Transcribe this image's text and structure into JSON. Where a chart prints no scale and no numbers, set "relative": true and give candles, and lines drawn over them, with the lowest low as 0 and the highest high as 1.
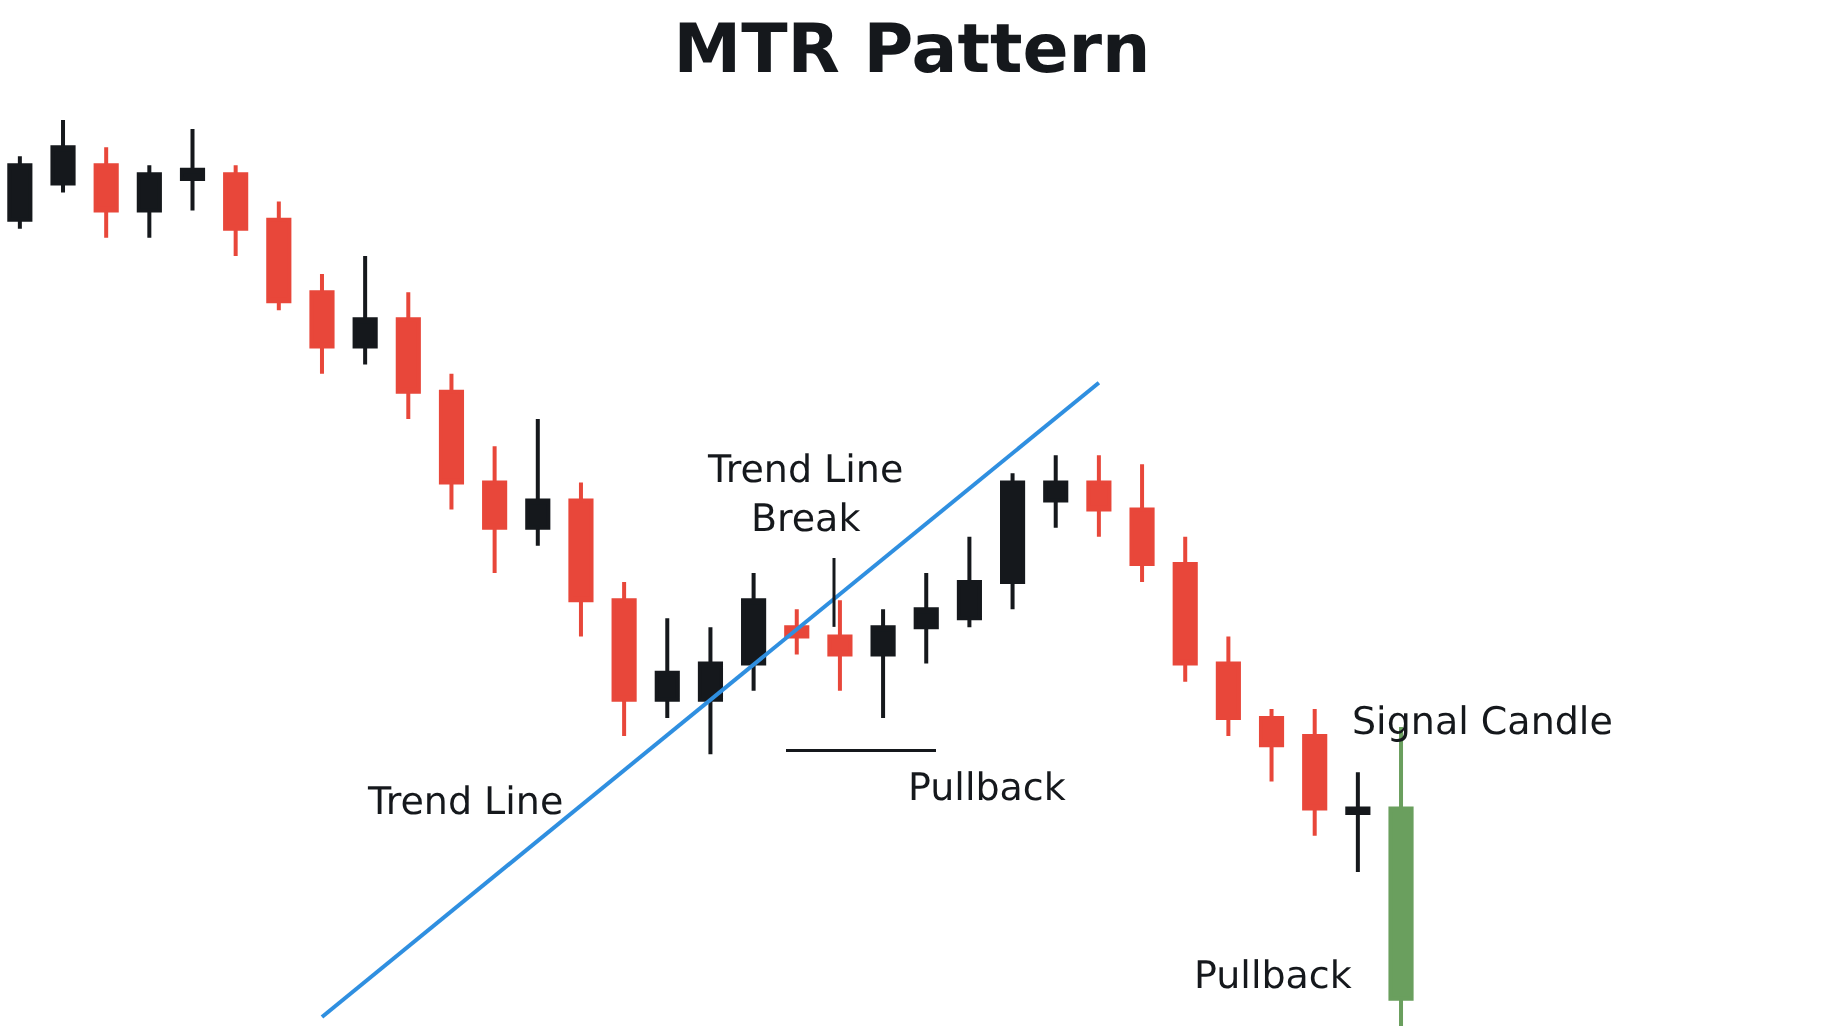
{
  "chart_data": {
    "type": "candlestick",
    "title": "MTR Pattern",
    "relative": true,
    "categories": [
      null,
      null,
      null,
      null,
      null,
      null,
      null,
      null,
      null,
      null,
      null,
      null,
      null,
      null,
      null,
      null,
      null,
      null,
      null,
      null,
      null,
      null,
      null,
      null,
      null,
      null,
      null,
      null,
      null,
      null,
      null,
      null,
      null
    ],
    "ohlc": [
      [
        0.89,
        0.96,
        0.88,
        0.95
      ],
      [
        0.93,
        1.0,
        0.92,
        0.97
      ],
      [
        0.95,
        0.97,
        0.87,
        0.9
      ],
      [
        0.9,
        0.95,
        0.87,
        0.94
      ],
      [
        0.935,
        0.99,
        0.9,
        0.945
      ],
      [
        0.94,
        0.95,
        0.85,
        0.88
      ],
      [
        0.89,
        0.91,
        0.79,
        0.8
      ],
      [
        0.81,
        0.83,
        0.72,
        0.75
      ],
      [
        0.75,
        0.85,
        0.73,
        0.78
      ],
      [
        0.78,
        0.81,
        0.67,
        0.7
      ],
      [
        0.7,
        0.72,
        0.57,
        0.6
      ],
      [
        0.6,
        0.64,
        0.5,
        0.55
      ],
      [
        0.55,
        0.67,
        0.53,
        0.58
      ],
      [
        0.58,
        0.6,
        0.43,
        0.47
      ],
      [
        0.47,
        0.49,
        0.32,
        0.36
      ],
      [
        0.36,
        0.45,
        0.34,
        0.39
      ],
      [
        0.36,
        0.44,
        0.3,
        0.4
      ],
      [
        0.4,
        0.5,
        0.37,
        0.47
      ],
      [
        0.44,
        0.46,
        0.41,
        0.43
      ],
      [
        0.43,
        0.47,
        0.37,
        0.41
      ],
      [
        0.41,
        0.46,
        0.34,
        0.44
      ],
      [
        0.44,
        0.5,
        0.4,
        0.46
      ],
      [
        0.45,
        0.54,
        0.44,
        0.49
      ],
      [
        0.49,
        0.61,
        0.46,
        0.6
      ],
      [
        0.58,
        0.63,
        0.55,
        0.6
      ],
      [
        0.6,
        0.63,
        0.54,
        0.57
      ],
      [
        0.57,
        0.62,
        0.49,
        0.51
      ],
      [
        0.51,
        0.54,
        0.38,
        0.4
      ],
      [
        0.4,
        0.43,
        0.32,
        0.34
      ],
      [
        0.34,
        0.35,
        0.27,
        0.31
      ],
      [
        0.32,
        0.35,
        0.21,
        0.24
      ],
      [
        0.235,
        0.28,
        0.17,
        0.24
      ],
      [
        0.03,
        0.33,
        0.0,
        0.24
      ]
    ],
    "colors": [
      "#15181c",
      "#15181c",
      "#e8473a",
      "#15181c",
      "#15181c",
      "#e8473a",
      "#e8473a",
      "#e8473a",
      "#15181c",
      "#e8473a",
      "#e8473a",
      "#e8473a",
      "#15181c",
      "#e8473a",
      "#e8473a",
      "#15181c",
      "#15181c",
      "#15181c",
      "#e8473a",
      "#e8473a",
      "#15181c",
      "#15181c",
      "#15181c",
      "#15181c",
      "#15181c",
      "#e8473a",
      "#e8473a",
      "#e8473a",
      "#e8473a",
      "#e8473a",
      "#e8473a",
      "#15181c",
      "#6a9f5e"
    ],
    "series": [
      {
        "type": "line",
        "color": "#2f8fe0",
        "values": [
          null,
          null,
          null,
          null,
          null,
          null,
          null,
          0.01,
          null,
          null,
          null,
          null,
          null,
          null,
          null,
          null,
          null,
          null,
          null,
          null,
          null,
          null,
          null,
          null,
          null,
          0.71,
          null,
          null,
          null,
          null,
          null,
          null,
          null
        ]
      }
    ],
    "annotations": [
      "Trend Line\nBreak",
      "Trend Line",
      "Pullback",
      "Signal Candle",
      "Pullback"
    ]
  }
}
